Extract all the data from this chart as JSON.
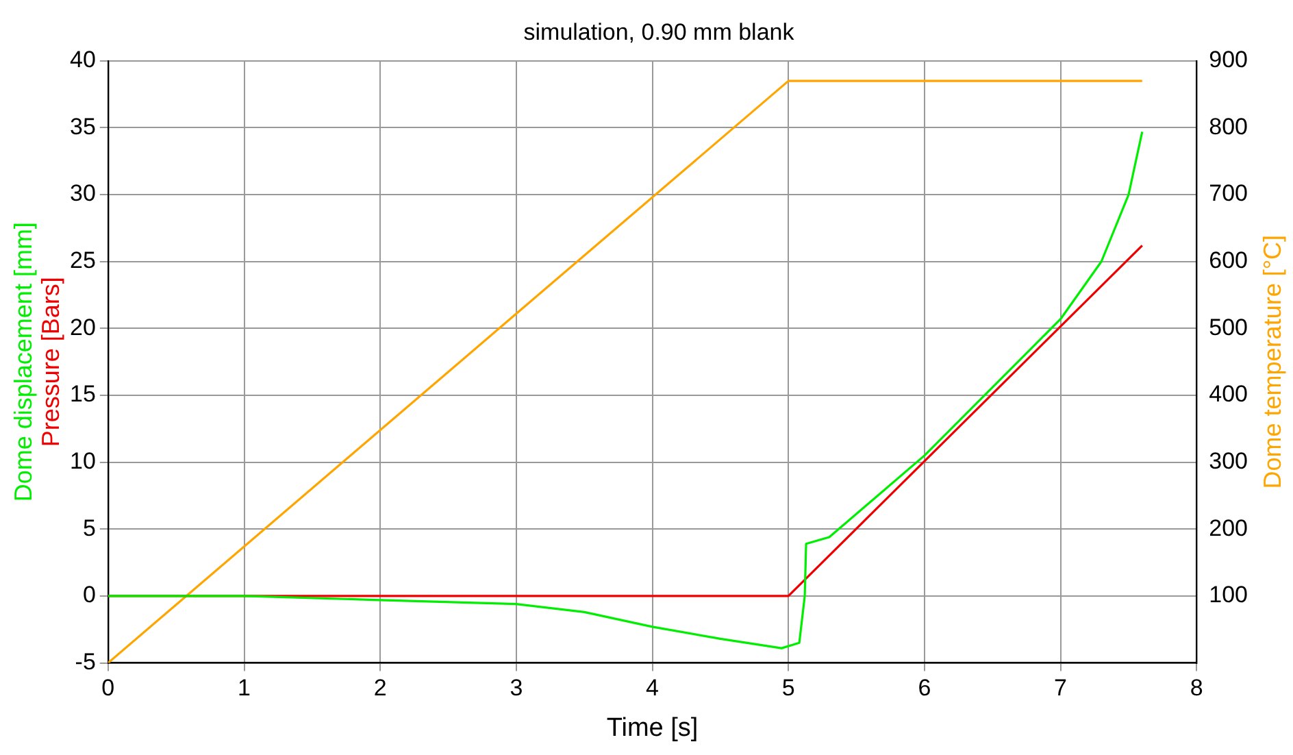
{
  "chart_data": {
    "type": "line",
    "title": "simulation, 0.90 mm blank",
    "xlabel": "Time [s]",
    "xlim": [
      0,
      8
    ],
    "xticks": [
      0,
      1,
      2,
      3,
      4,
      5,
      6,
      7,
      8
    ],
    "ylim": [
      -5,
      40
    ],
    "yticks": [
      -5,
      0,
      5,
      10,
      15,
      20,
      25,
      30,
      35,
      40
    ],
    "y2lim": [
      0,
      900
    ],
    "y2ticks": [
      100,
      200,
      300,
      400,
      500,
      600,
      700,
      800,
      900
    ],
    "grid": true,
    "legend": false,
    "line_style": "solid",
    "marker": "none",
    "series": [
      {
        "name": "Dome displacement [mm]",
        "color": "#00ee00",
        "x": [
          0,
          1,
          2,
          3,
          3.5,
          4,
          4.5,
          4.95,
          5.08,
          5.12,
          5.13,
          5.3,
          6,
          7,
          7.3,
          7.5,
          7.6
        ],
        "values": [
          0,
          0,
          -0.3,
          -0.6,
          -1.2,
          -2.3,
          -3.2,
          -3.9,
          -3.5,
          0,
          3.9,
          4.4,
          10.5,
          20.7,
          25,
          30,
          34.7
        ]
      },
      {
        "name": "Pressure [Bars]",
        "color": "#ee0000",
        "x": [
          0,
          5,
          7.6
        ],
        "values": [
          0,
          0,
          26.2
        ]
      },
      {
        "name": "Dome temperature [°C]",
        "color": "#ffa500",
        "axis": "y2",
        "x": [
          0,
          5,
          7.6
        ],
        "values": [
          0,
          870,
          870
        ]
      }
    ]
  }
}
